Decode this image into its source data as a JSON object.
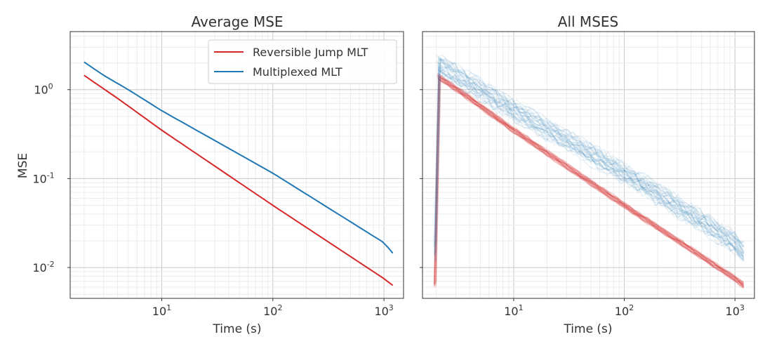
{
  "chart_data": [
    {
      "type": "line",
      "title": "Average MSE",
      "xlabel": "Time (s)",
      "ylabel": "MSE",
      "xscale": "log",
      "yscale": "log",
      "xlim": [
        1.5,
        1500
      ],
      "ylim": [
        0.0045,
        4.5
      ],
      "xticks": [
        "10^1",
        "10^2",
        "10^3"
      ],
      "yticks": [
        "10^-2",
        "10^-1",
        "10^0"
      ],
      "grid": true,
      "legend": "top-right",
      "series": [
        {
          "name": "Reversible Jump MLT",
          "color": "#d62728",
          "x": [
            2,
            4,
            10,
            100,
            1000,
            1200
          ],
          "y": [
            1.45,
            0.8,
            0.35,
            0.05,
            0.0075,
            0.0063
          ]
        },
        {
          "name": "Multiplexed MLT",
          "color": "#1f77b4",
          "x": [
            2,
            3,
            5,
            10,
            100,
            1000,
            1200
          ],
          "y": [
            2.05,
            1.45,
            1.0,
            0.58,
            0.115,
            0.019,
            0.0145
          ]
        }
      ]
    },
    {
      "type": "line",
      "title": "All MSES",
      "xlabel": "Time (s)",
      "ylabel": "",
      "xscale": "log",
      "yscale": "log",
      "xlim": [
        1.5,
        1500
      ],
      "ylim": [
        0.0045,
        4.5
      ],
      "xticks": [
        "10^1",
        "10^2",
        "10^3"
      ],
      "yticks": [],
      "grid": true,
      "series_groups": [
        {
          "color": "#d62728",
          "opacity": 0.12,
          "count": 30,
          "base_x": [
            2,
            4,
            10,
            100,
            1000,
            1200
          ],
          "base_y": [
            1.45,
            0.8,
            0.35,
            0.05,
            0.0075,
            0.0063
          ],
          "spread": 0.06
        },
        {
          "color": "#1f77b4",
          "opacity": 0.1,
          "count": 30,
          "base_x": [
            2,
            3,
            5,
            10,
            100,
            1000,
            1200
          ],
          "base_y": [
            2.05,
            1.45,
            1.0,
            0.58,
            0.115,
            0.019,
            0.0145
          ],
          "spread": 0.2
        }
      ]
    }
  ]
}
